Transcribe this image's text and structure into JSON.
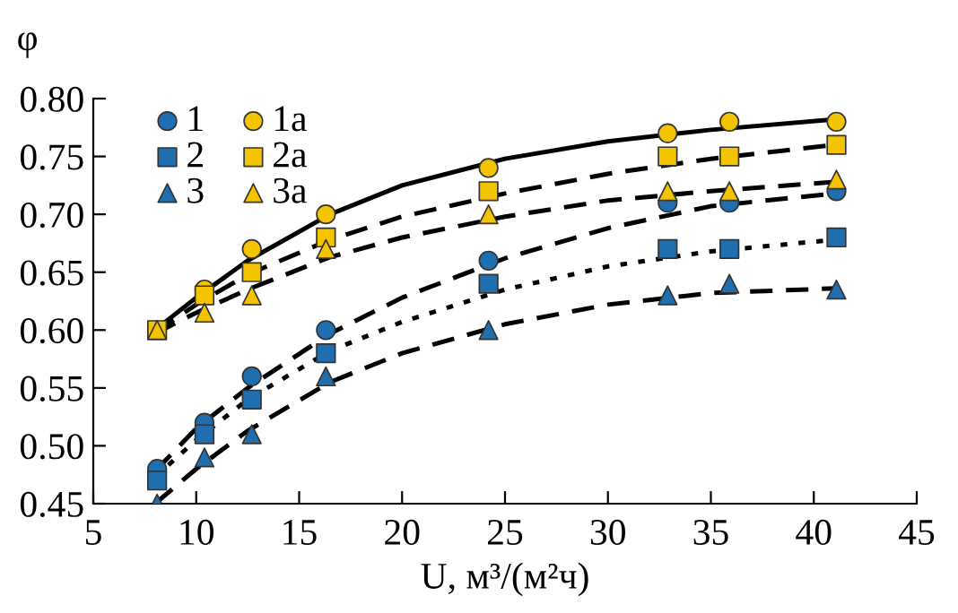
{
  "chart_data": {
    "type": "scatter",
    "xlabel": "U, м³/(м²ч)",
    "ylabel": "φ",
    "xlim": [
      5,
      45
    ],
    "ylim": [
      0.45,
      0.8
    ],
    "xticks": [
      5,
      10,
      15,
      20,
      25,
      30,
      35,
      40,
      45
    ],
    "yticks": [
      {
        "value": 0.45,
        "label": "0.45"
      },
      {
        "value": 0.5,
        "label": "0.50"
      },
      {
        "value": 0.55,
        "label": "0.55"
      },
      {
        "value": 0.6,
        "label": "0.60"
      },
      {
        "value": 0.65,
        "label": "0.65"
      },
      {
        "value": 0.7,
        "label": "0.70"
      },
      {
        "value": 0.75,
        "label": "0.75"
      },
      {
        "value": 0.8,
        "label": "0.80"
      }
    ],
    "grid": false,
    "legend": "top left",
    "x": [
      8.1,
      10.4,
      12.7,
      16.3,
      24.2,
      32.9,
      35.9,
      41.1
    ],
    "series": [
      {
        "name": "1",
        "color": "#1f6fb0",
        "marker": "circle",
        "values": [
          0.48,
          0.52,
          0.56,
          0.6,
          0.66,
          0.71,
          0.71,
          0.72
        ]
      },
      {
        "name": "2",
        "color": "#1f6fb0",
        "marker": "square",
        "values": [
          0.47,
          0.51,
          0.54,
          0.58,
          0.64,
          0.67,
          0.67,
          0.68
        ]
      },
      {
        "name": "3",
        "color": "#1f6fb0",
        "marker": "triangle",
        "values": [
          0.45,
          0.49,
          0.51,
          0.56,
          0.6,
          0.63,
          0.64,
          0.635
        ]
      },
      {
        "name": "1a",
        "color": "#f5c400",
        "marker": "circle",
        "values": [
          null,
          0.635,
          0.67,
          0.7,
          0.74,
          0.77,
          0.78,
          0.78
        ]
      },
      {
        "name": "2a",
        "color": "#f5c400",
        "marker": "square",
        "values": [
          0.6,
          0.63,
          0.65,
          0.68,
          0.72,
          0.75,
          0.75,
          0.76
        ]
      },
      {
        "name": "3a",
        "color": "#f5c400",
        "marker": "triangle",
        "values": [
          0.6,
          0.615,
          0.63,
          0.67,
          0.7,
          0.72,
          0.72,
          0.73
        ]
      },
      {
        "type": "line",
        "color": "#000000",
        "line_style": "dashed",
        "x": [
          8,
          10,
          12.5,
          16.5,
          20,
          25,
          30,
          35,
          41
        ],
        "values": [
          0.478,
          0.515,
          0.55,
          0.597,
          0.628,
          0.662,
          0.688,
          0.707,
          0.718
        ]
      },
      {
        "type": "line",
        "color": "#000000",
        "line_style": "dotted",
        "x": [
          8,
          10,
          12.5,
          16.5,
          20,
          25,
          30,
          35,
          41
        ],
        "values": [
          0.473,
          0.505,
          0.54,
          0.582,
          0.607,
          0.635,
          0.655,
          0.668,
          0.678
        ]
      },
      {
        "type": "line",
        "color": "#000000",
        "line_style": "dashed",
        "x": [
          8,
          10,
          12.5,
          16.5,
          20,
          25,
          30,
          35,
          41
        ],
        "values": [
          0.45,
          0.48,
          0.513,
          0.555,
          0.58,
          0.605,
          0.622,
          0.632,
          0.636
        ]
      },
      {
        "type": "line",
        "color": "#000000",
        "line_style": "solid",
        "x": [
          8,
          10,
          12.5,
          16.5,
          20,
          25,
          30,
          35,
          41
        ],
        "values": [
          0.6,
          0.628,
          0.66,
          0.7,
          0.725,
          0.748,
          0.763,
          0.773,
          0.782
        ]
      },
      {
        "type": "line",
        "color": "#000000",
        "line_style": "dashed",
        "x": [
          8,
          10,
          12.5,
          16.5,
          20,
          25,
          30,
          35,
          41
        ],
        "values": [
          0.598,
          0.622,
          0.648,
          0.678,
          0.698,
          0.718,
          0.735,
          0.748,
          0.76
        ]
      },
      {
        "type": "line",
        "color": "#000000",
        "line_style": "dashed",
        "x": [
          8,
          10,
          12.5,
          16.5,
          20,
          25,
          30,
          35,
          41
        ],
        "values": [
          0.597,
          0.615,
          0.635,
          0.663,
          0.68,
          0.698,
          0.712,
          0.72,
          0.728
        ]
      }
    ]
  }
}
